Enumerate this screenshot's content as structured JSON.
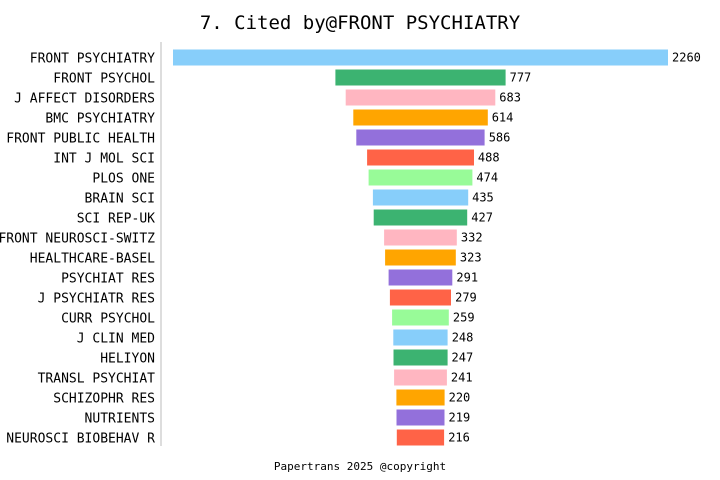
{
  "chart_data": {
    "type": "bar",
    "orientation": "horizontal",
    "layout": "centered",
    "title": "7. Cited by@FRONT PSYCHIATRY",
    "footer": "Papertrans 2025 @copyright",
    "categories": [
      "FRONT PSYCHIATRY",
      "FRONT PSYCHOL",
      "J AFFECT DISORDERS",
      "BMC PSYCHIATRY",
      "FRONT PUBLIC HEALTH",
      "INT J MOL SCI",
      "PLOS ONE",
      "BRAIN SCI",
      "SCI REP-UK",
      "FRONT NEUROSCI-SWITZ",
      "HEALTHCARE-BASEL",
      "PSYCHIAT RES",
      "J PSYCHIATR RES",
      "CURR PSYCHOL",
      "J CLIN MED",
      "HELIYON",
      "TRANSL PSYCHIAT",
      "SCHIZOPHR RES",
      "NUTRIENTS",
      "NEUROSCI BIOBEHAV R"
    ],
    "values": [
      2260,
      777,
      683,
      614,
      586,
      488,
      474,
      435,
      427,
      332,
      323,
      291,
      279,
      259,
      248,
      247,
      241,
      220,
      219,
      216
    ],
    "colors": [
      "#87CEFA",
      "#3CB371",
      "#FFB6C1",
      "#FFA500",
      "#9370DB",
      "#FF6347",
      "#98FB98"
    ],
    "xlim": [
      0,
      2260
    ],
    "grid": false,
    "legend": "none"
  }
}
